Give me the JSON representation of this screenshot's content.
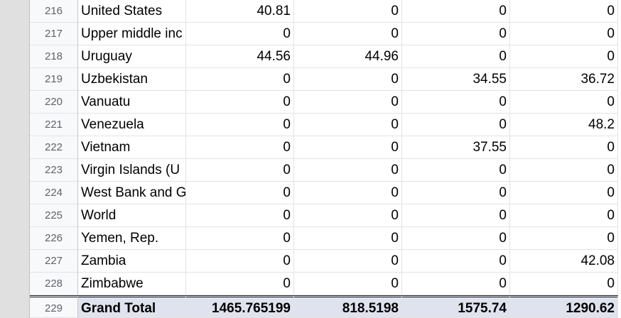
{
  "rows": [
    {
      "num": "216",
      "name": "United States",
      "v1": "40.81",
      "v2": "0",
      "v3": "0",
      "v4": "0"
    },
    {
      "num": "217",
      "name": "Upper middle inc",
      "v1": "0",
      "v2": "0",
      "v3": "0",
      "v4": "0"
    },
    {
      "num": "218",
      "name": "Uruguay",
      "v1": "44.56",
      "v2": "44.96",
      "v3": "0",
      "v4": "0"
    },
    {
      "num": "219",
      "name": "Uzbekistan",
      "v1": "0",
      "v2": "0",
      "v3": "34.55",
      "v4": "36.72"
    },
    {
      "num": "220",
      "name": "Vanuatu",
      "v1": "0",
      "v2": "0",
      "v3": "0",
      "v4": "0"
    },
    {
      "num": "221",
      "name": "Venezuela",
      "v1": "0",
      "v2": "0",
      "v3": "0",
      "v4": "48.2"
    },
    {
      "num": "222",
      "name": "Vietnam",
      "v1": "0",
      "v2": "0",
      "v3": "37.55",
      "v4": "0"
    },
    {
      "num": "223",
      "name": "Virgin Islands (U",
      "v1": "0",
      "v2": "0",
      "v3": "0",
      "v4": "0"
    },
    {
      "num": "224",
      "name": "West Bank and G",
      "v1": "0",
      "v2": "0",
      "v3": "0",
      "v4": "0"
    },
    {
      "num": "225",
      "name": "World",
      "v1": "0",
      "v2": "0",
      "v3": "0",
      "v4": "0"
    },
    {
      "num": "226",
      "name": "Yemen, Rep.",
      "v1": "0",
      "v2": "0",
      "v3": "0",
      "v4": "0"
    },
    {
      "num": "227",
      "name": "Zambia",
      "v1": "0",
      "v2": "0",
      "v3": "0",
      "v4": "42.08"
    },
    {
      "num": "228",
      "name": "Zimbabwe",
      "v1": "0",
      "v2": "0",
      "v3": "0",
      "v4": "0"
    }
  ],
  "total": {
    "num": "229",
    "name": "Grand Total",
    "v1": "1465.765199",
    "v2": "818.5198",
    "v3": "1575.74",
    "v4": "1290.62"
  },
  "colors": {
    "total_background": "#dfe3ee",
    "row_header_background": "#f8f9fa",
    "gutter": "#e0e0e0"
  }
}
